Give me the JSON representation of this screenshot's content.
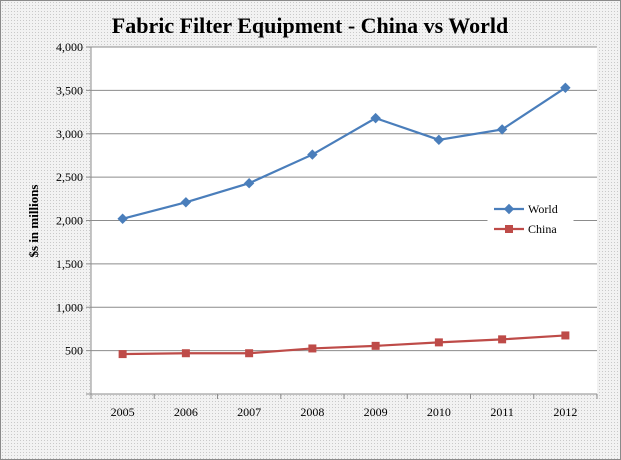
{
  "chart_data": {
    "type": "line",
    "title": "Fabric Filter Equipment - China vs World",
    "xlabel": "",
    "ylabel": "$s in millions",
    "categories": [
      "2005",
      "2006",
      "2007",
      "2008",
      "2009",
      "2010",
      "2011",
      "2012"
    ],
    "ylim": [
      0,
      4000
    ],
    "yticks": [
      0,
      500,
      1000,
      1500,
      2000,
      2500,
      3000,
      3500,
      4000
    ],
    "ytick_labels": [
      "",
      "500",
      "1,000",
      "1,500",
      "2,000",
      "2,500",
      "3,000",
      "3,500",
      "4,000"
    ],
    "grid": true,
    "legend_position": "right",
    "series": [
      {
        "name": "World",
        "color": "#4a7ebb",
        "marker": "diamond",
        "values": [
          2020,
          2210,
          2430,
          2760,
          3180,
          2930,
          3050,
          3530
        ]
      },
      {
        "name": "China",
        "color": "#be4b48",
        "marker": "square",
        "values": [
          460,
          470,
          470,
          525,
          555,
          595,
          630,
          675
        ]
      }
    ]
  }
}
